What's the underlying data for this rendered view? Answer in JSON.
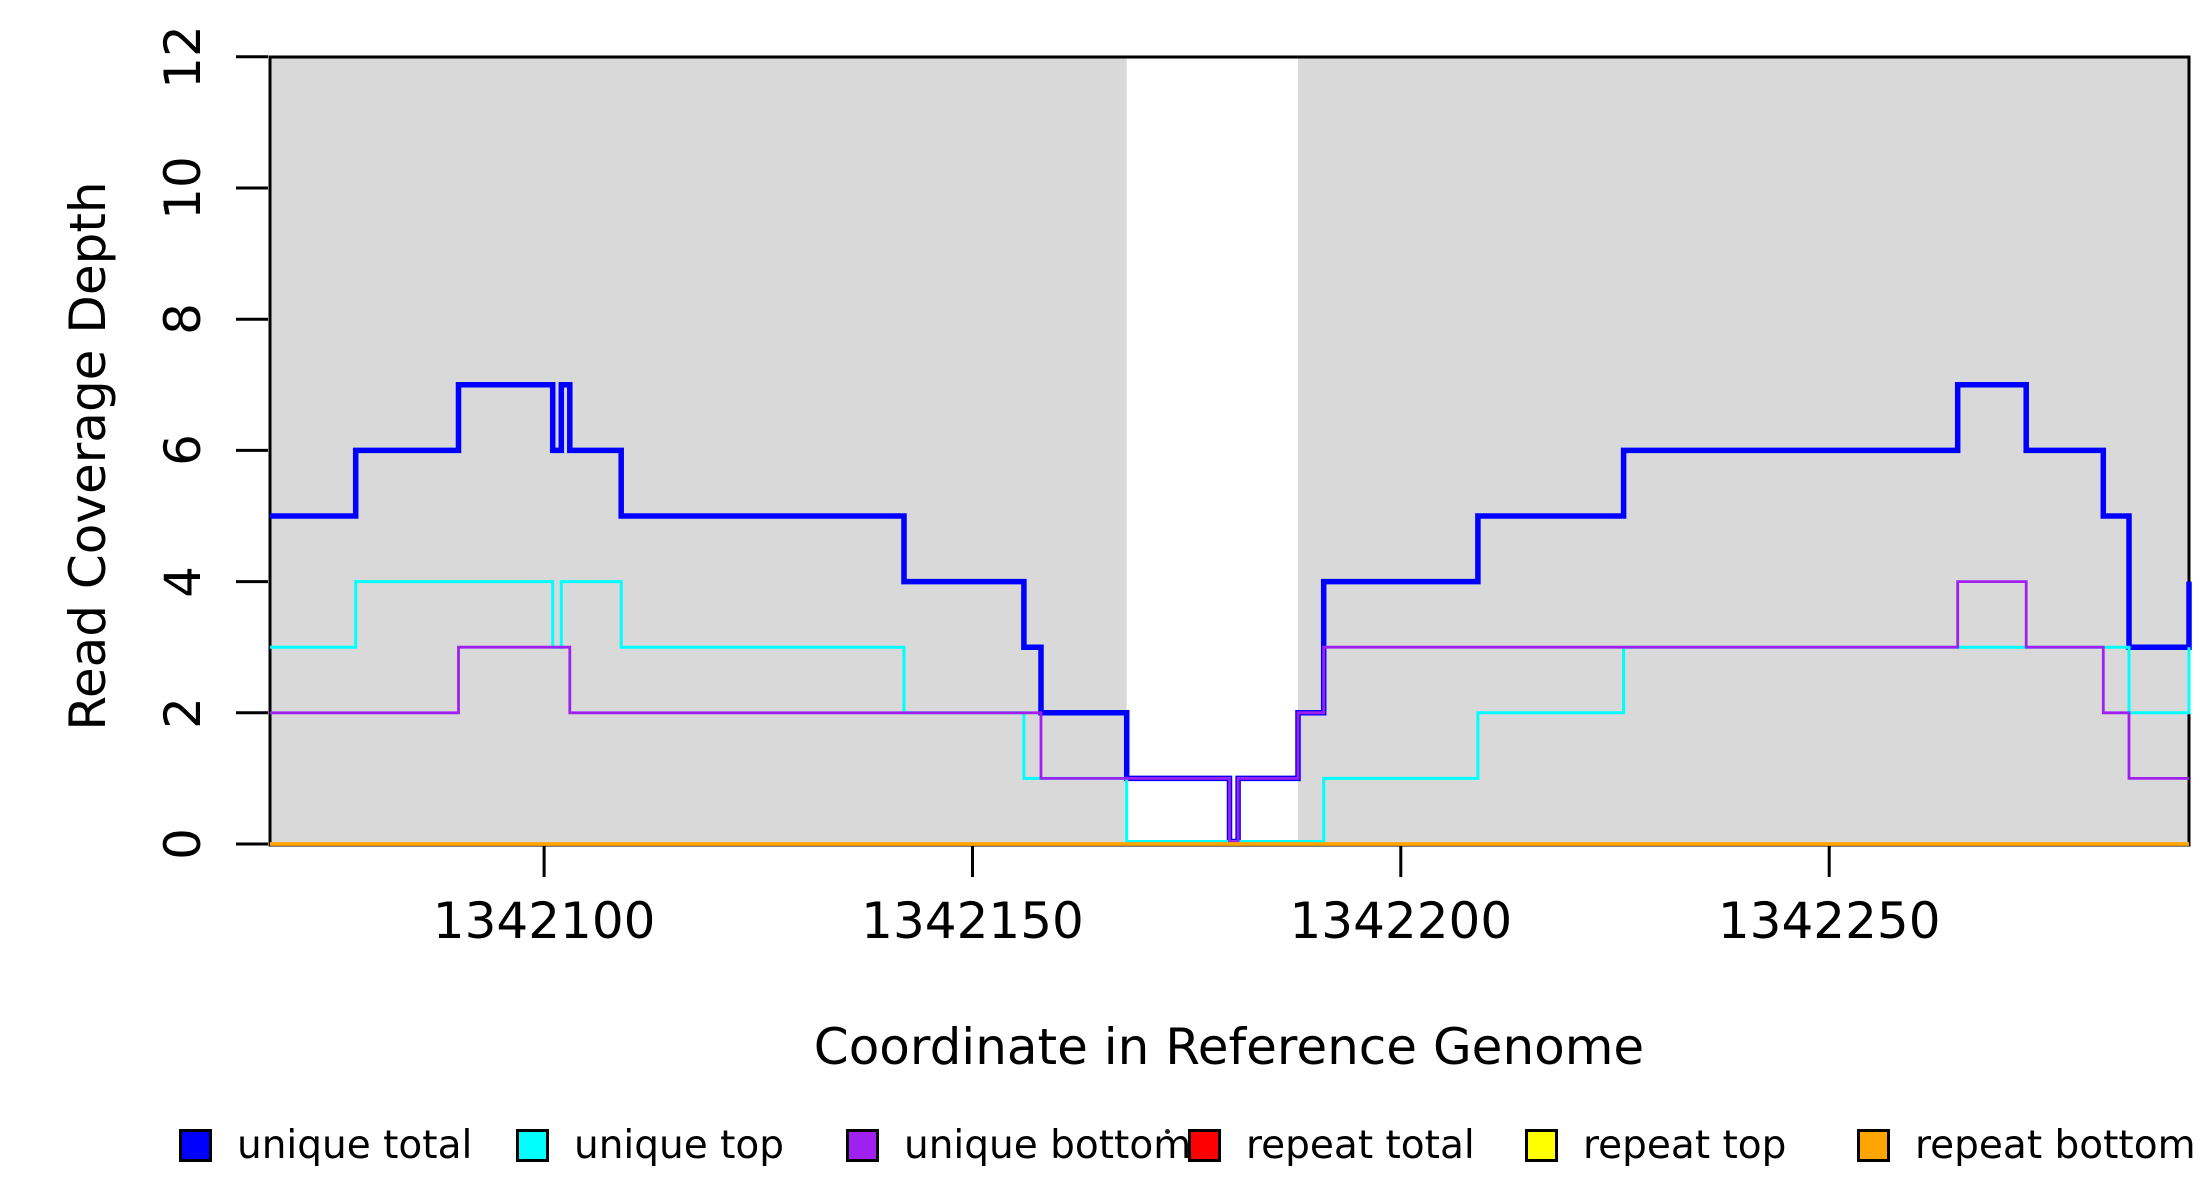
{
  "chart_data": {
    "type": "line",
    "subtype": "step",
    "title": "",
    "xlabel": "Coordinate in Reference Genome",
    "ylabel": "Read Coverage Depth",
    "x_domain": [
      1342068,
      1342292
    ],
    "y_domain": [
      0,
      12
    ],
    "grid": false,
    "legend_position": "bottom",
    "x_ticks": [
      {
        "value": 1342100,
        "label": "1342100"
      },
      {
        "value": 1342150,
        "label": "1342150"
      },
      {
        "value": 1342200,
        "label": "1342200"
      },
      {
        "value": 1342250,
        "label": "1342250"
      }
    ],
    "y_ticks": [
      {
        "value": 0,
        "label": "0"
      },
      {
        "value": 2,
        "label": "2"
      },
      {
        "value": 4,
        "label": "4"
      },
      {
        "value": 6,
        "label": "6"
      },
      {
        "value": 8,
        "label": "8"
      },
      {
        "value": 10,
        "label": "10"
      },
      {
        "value": 12,
        "label": "12"
      }
    ],
    "shaded_regions": {
      "color": "#D9D9D9",
      "ranges": [
        [
          1342068,
          1342168
        ],
        [
          1342188,
          1342292
        ]
      ]
    },
    "series": [
      {
        "name": "unique total",
        "color": "#0000FF",
        "lwd": 5.5,
        "steps": [
          [
            1342068,
            5
          ],
          [
            1342078,
            6
          ],
          [
            1342090,
            7
          ],
          [
            1342101,
            6
          ],
          [
            1342102,
            7
          ],
          [
            1342103,
            6
          ],
          [
            1342109,
            5
          ],
          [
            1342142,
            4
          ],
          [
            1342156,
            3
          ],
          [
            1342158,
            2
          ],
          [
            1342168,
            1
          ],
          [
            1342180,
            0
          ],
          [
            1342181,
            1
          ],
          [
            1342188,
            2
          ],
          [
            1342191,
            4
          ],
          [
            1342209,
            5
          ],
          [
            1342226,
            6
          ],
          [
            1342265,
            7
          ],
          [
            1342273,
            6
          ],
          [
            1342282,
            5
          ],
          [
            1342285,
            3
          ],
          [
            1342292,
            4
          ]
        ]
      },
      {
        "name": "unique top",
        "color": "#00FFFF",
        "lwd": 3,
        "steps": [
          [
            1342068,
            3
          ],
          [
            1342078,
            4
          ],
          [
            1342101,
            3
          ],
          [
            1342102,
            4
          ],
          [
            1342109,
            3
          ],
          [
            1342142,
            2
          ],
          [
            1342156,
            1
          ],
          [
            1342168,
            0
          ],
          [
            1342191,
            1
          ],
          [
            1342209,
            2
          ],
          [
            1342226,
            3
          ],
          [
            1342285,
            2
          ],
          [
            1342292,
            3
          ]
        ]
      },
      {
        "name": "unique bottom",
        "color": "#A020F0",
        "lwd": 2.8,
        "steps": [
          [
            1342068,
            2
          ],
          [
            1342090,
            3
          ],
          [
            1342103,
            2
          ],
          [
            1342158,
            1
          ],
          [
            1342180,
            0
          ],
          [
            1342181,
            1
          ],
          [
            1342188,
            2
          ],
          [
            1342191,
            3
          ],
          [
            1342265,
            4
          ],
          [
            1342273,
            3
          ],
          [
            1342282,
            2
          ],
          [
            1342285,
            1
          ]
        ]
      },
      {
        "name": "repeat total",
        "color": "#FF0000",
        "lwd": 3,
        "steps": [
          [
            1342068,
            0
          ]
        ]
      },
      {
        "name": "repeat top",
        "color": "#FFFF00",
        "lwd": 3,
        "steps": [
          [
            1342068,
            0
          ]
        ]
      },
      {
        "name": "repeat bottom",
        "color": "#FFA500",
        "lwd": 3.8,
        "steps": [
          [
            1342068,
            0
          ]
        ]
      }
    ],
    "legend": [
      {
        "label": "unique total",
        "color": "#0000FF"
      },
      {
        "label": "unique top",
        "color": "#00FFFF"
      },
      {
        "label": "unique bottom",
        "color": "#A020F0"
      },
      {
        "label": "repeat total",
        "color": "#FF0000"
      },
      {
        "label": "repeat top",
        "color": "#FFFF00"
      },
      {
        "label": "repeat bottom",
        "color": "#FFA500"
      }
    ]
  }
}
